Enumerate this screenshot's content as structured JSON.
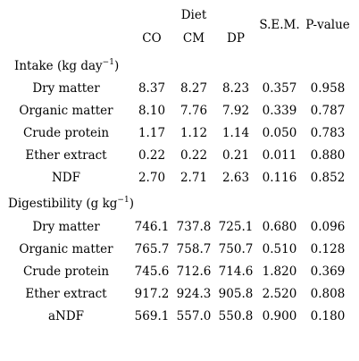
{
  "header": {
    "group": "Diet",
    "columns": [
      "CO",
      "CM",
      "DP",
      "S.E.M.",
      "P-value"
    ]
  },
  "sections": [
    {
      "title_text": "Intake (kg day",
      "title_exp": "−1",
      "title_close": ")",
      "rows": [
        {
          "label": "Dry matter",
          "values": [
            "8.37",
            "8.27",
            "8.23",
            "0.357",
            "0.958"
          ]
        },
        {
          "label": "Organic matter",
          "values": [
            "8.10",
            "7.76",
            "7.92",
            "0.339",
            "0.787"
          ]
        },
        {
          "label": "Crude protein",
          "values": [
            "1.17",
            "1.12",
            "1.14",
            "0.050",
            "0.783"
          ]
        },
        {
          "label": "Ether extract",
          "values": [
            "0.22",
            "0.22",
            "0.21",
            "0.011",
            "0.880"
          ]
        },
        {
          "label": "NDF",
          "values": [
            "2.70",
            "2.71",
            "2.63",
            "0.116",
            "0.852"
          ]
        }
      ]
    },
    {
      "title_text": "Digestibility (g kg",
      "title_exp": "−1",
      "title_close": ")",
      "rows": [
        {
          "label": "Dry matter",
          "values": [
            "746.1",
            "737.8",
            "725.1",
            "0.680",
            "0.096"
          ]
        },
        {
          "label": "Organic matter",
          "values": [
            "765.7",
            "758.7",
            "750.7",
            "0.510",
            "0.128"
          ]
        },
        {
          "label": "Crude protein",
          "values": [
            "745.6",
            "712.6",
            "714.6",
            "1.820",
            "0.369"
          ]
        },
        {
          "label": "Ether extract",
          "values": [
            "917.2",
            "924.3",
            "905.8",
            "2.520",
            "0.808"
          ]
        },
        {
          "label": "aNDF",
          "values": [
            "569.1",
            "557.0",
            "550.8",
            "0.900",
            "0.180"
          ]
        }
      ]
    }
  ]
}
